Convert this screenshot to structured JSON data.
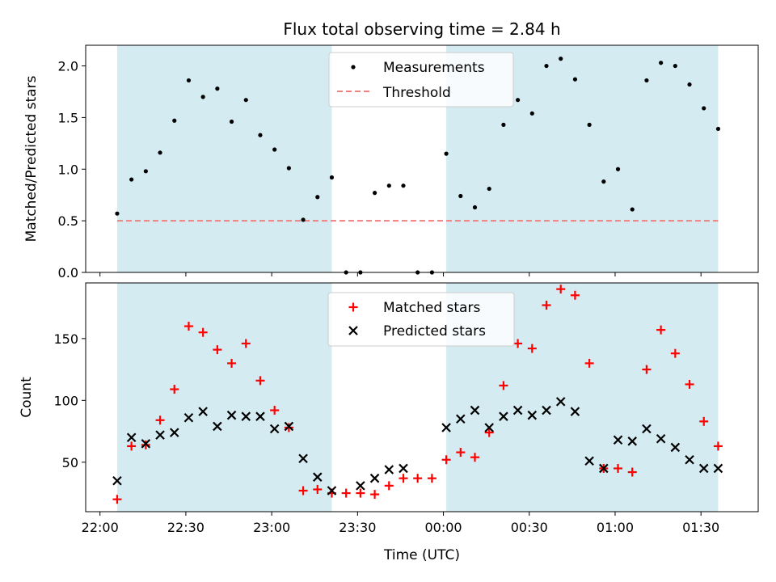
{
  "colors": {
    "span": "#add8e6",
    "measurement": "#000000",
    "threshold": "#f08080",
    "matched": "#ff0000",
    "predicted": "#000000",
    "axis": "#000000"
  },
  "chart_data": [
    {
      "type": "scatter",
      "title": "Flux total observing time = 2.84 h",
      "ylabel": "Matched/Predicted stars",
      "xlabel": "",
      "xlim": [
        "21:55",
        "01:50"
      ],
      "ylim": [
        0,
        2.2
      ],
      "ytick_labels": [
        "0.0",
        "0.5",
        "1.0",
        "1.5",
        "2.0"
      ],
      "yticks": [
        0,
        0.5,
        1.0,
        1.5,
        2.0
      ],
      "grid": false,
      "legend_position": "upper-center",
      "observing_spans": [
        [
          "22:06",
          "23:21"
        ],
        [
          "00:01",
          "01:36"
        ]
      ],
      "series": [
        {
          "name": "Measurements",
          "marker": "dot",
          "x": [
            "22:06",
            "22:11",
            "22:16",
            "22:21",
            "22:26",
            "22:31",
            "22:36",
            "22:41",
            "22:46",
            "22:51",
            "22:56",
            "23:01",
            "23:06",
            "23:11",
            "23:16",
            "23:21",
            "23:26",
            "23:31",
            "23:36",
            "23:41",
            "23:46",
            "23:51",
            "23:56",
            "00:01",
            "00:06",
            "00:11",
            "00:16",
            "00:21",
            "00:26",
            "00:31",
            "00:36",
            "00:41",
            "00:46",
            "00:51",
            "00:56",
            "01:01",
            "01:06",
            "01:11",
            "01:16",
            "01:21",
            "01:26",
            "01:31",
            "01:36"
          ],
          "y": [
            0.57,
            0.9,
            0.98,
            1.16,
            1.47,
            1.86,
            1.7,
            1.78,
            1.46,
            1.67,
            1.33,
            1.19,
            1.01,
            0.51,
            0.73,
            0.92,
            0.0,
            0.0,
            0.77,
            0.84,
            0.84,
            0.0,
            0.0,
            1.15,
            0.74,
            0.63,
            0.81,
            1.43,
            1.67,
            1.54,
            2.0,
            2.07,
            1.87,
            1.43,
            0.88,
            1.0,
            0.61,
            1.86,
            2.03,
            2.0,
            1.82,
            1.59,
            1.39
          ]
        },
        {
          "name": "Threshold",
          "style": "dashed",
          "x": [
            "22:06",
            "01:36"
          ],
          "y": [
            0.5,
            0.5
          ]
        }
      ]
    },
    {
      "type": "scatter",
      "title": "",
      "ylabel": "Count",
      "xlabel": "Time (UTC)",
      "xlim": [
        "21:55",
        "01:50"
      ],
      "ylim": [
        10,
        195
      ],
      "xtick_labels": [
        "22:00",
        "22:30",
        "23:00",
        "23:30",
        "00:00",
        "00:30",
        "01:00",
        "01:30"
      ],
      "xticks": [
        "22:00",
        "22:30",
        "23:00",
        "23:30",
        "00:00",
        "00:30",
        "01:00",
        "01:30"
      ],
      "ytick_labels": [
        "50",
        "100",
        "150"
      ],
      "yticks": [
        50,
        100,
        150
      ],
      "grid": false,
      "legend_position": "upper-center",
      "observing_spans": [
        [
          "22:06",
          "23:21"
        ],
        [
          "00:01",
          "01:36"
        ]
      ],
      "series": [
        {
          "name": "Matched stars",
          "marker": "plus",
          "x": [
            "22:06",
            "22:11",
            "22:16",
            "22:21",
            "22:26",
            "22:31",
            "22:36",
            "22:41",
            "22:46",
            "22:51",
            "22:56",
            "23:01",
            "23:06",
            "23:11",
            "23:16",
            "23:21",
            "23:26",
            "23:31",
            "23:36",
            "23:41",
            "23:46",
            "23:51",
            "23:56",
            "00:01",
            "00:06",
            "00:11",
            "00:16",
            "00:21",
            "00:26",
            "00:31",
            "00:36",
            "00:41",
            "00:46",
            "00:51",
            "00:56",
            "01:01",
            "01:06",
            "01:11",
            "01:16",
            "01:21",
            "01:26",
            "01:31",
            "01:36"
          ],
          "y": [
            20,
            63,
            64,
            84,
            109,
            160,
            155,
            141,
            130,
            146,
            116,
            92,
            78,
            27,
            28,
            25,
            25,
            25,
            24,
            31,
            37,
            37,
            37,
            52,
            58,
            54,
            74,
            112,
            146,
            142,
            177,
            190,
            185,
            130,
            45,
            45,
            42,
            125,
            157,
            138,
            113,
            83,
            63
          ]
        },
        {
          "name": "Predicted stars",
          "marker": "x",
          "x": [
            "22:06",
            "22:11",
            "22:16",
            "22:21",
            "22:26",
            "22:31",
            "22:36",
            "22:41",
            "22:46",
            "22:51",
            "22:56",
            "23:01",
            "23:06",
            "23:11",
            "23:16",
            "23:21",
            "23:31",
            "23:36",
            "23:41",
            "23:46",
            "00:01",
            "00:06",
            "00:11",
            "00:16",
            "00:21",
            "00:26",
            "00:31",
            "00:36",
            "00:41",
            "00:46",
            "00:51",
            "00:56",
            "01:01",
            "01:06",
            "01:11",
            "01:16",
            "01:21",
            "01:26",
            "01:31",
            "01:36"
          ],
          "y": [
            35,
            70,
            65,
            72,
            74,
            86,
            91,
            79,
            88,
            87,
            87,
            77,
            79,
            53,
            38,
            27,
            31,
            37,
            44,
            45,
            78,
            85,
            92,
            78,
            87,
            92,
            88,
            92,
            99,
            91,
            51,
            45,
            68,
            67,
            77,
            69,
            62,
            52,
            45,
            45
          ]
        }
      ]
    }
  ]
}
